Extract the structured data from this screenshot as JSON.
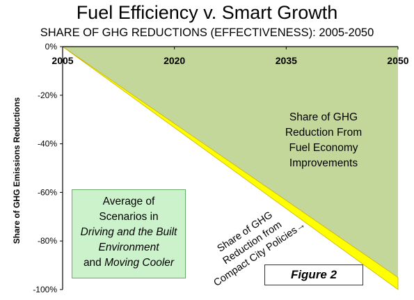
{
  "title": "Fuel Efficiency v. Smart Growth",
  "subtitle": "SHARE OF GHG REDUCTIONS (EFFECTIVENESS): 2005-2050",
  "chart_data": {
    "type": "area",
    "x": [
      2005,
      2050
    ],
    "xticks": [
      "2005",
      "2020",
      "2035",
      "2050"
    ],
    "xlim": [
      2005,
      2050
    ],
    "ylim": [
      -100,
      0
    ],
    "yticks": [
      "0%",
      "-20%",
      "-40%",
      "-60%",
      "-80%",
      "-100%"
    ],
    "ylabel": "Share of GHG Emissions Reductions",
    "series": [
      {
        "name": "Share of GHG Reduction From Fuel Economy Improvements",
        "values": [
          0,
          -95
        ],
        "color": "#c4d79b"
      },
      {
        "name": "Share of GHG Reduction from Compact City Policies",
        "values": [
          0,
          -5
        ],
        "color": "#ffff00"
      }
    ],
    "grid": false
  },
  "annotations": {
    "fuel_label_lines": [
      "Share of GHG",
      "Reduction From",
      "Fuel Economy",
      "Improvements"
    ],
    "compact_label_lines": [
      "Share of  GHG",
      "Reduction from",
      "Compact City Policies"
    ],
    "compact_arrow": "→",
    "scenario_lines": {
      "line1": "Average of",
      "line2": "Scenarios in",
      "line3": "Driving and the Built",
      "line4": "Environment",
      "line5_pre": "and ",
      "line5_italic": "Moving Cooler"
    },
    "figure_label": "Figure 2"
  },
  "colors": {
    "fuel_fill": "#c4d79b",
    "compact_fill": "#ffff00",
    "compact_edge": "#c8b400",
    "scenario_bg": "#ccf2cc",
    "axis": "#000000"
  }
}
